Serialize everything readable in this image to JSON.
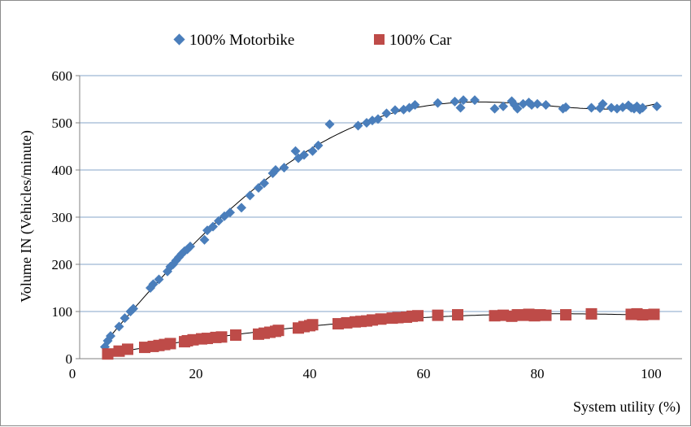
{
  "chart_data": {
    "type": "scatter",
    "title": "",
    "xlabel": "System utility (%)",
    "ylabel": "Volume IN (Vehicles/minute)",
    "xlim": [
      0,
      100
    ],
    "ylim": [
      0,
      600
    ],
    "x_ticks": [
      "0",
      "20",
      "40",
      "60",
      "80",
      "100"
    ],
    "y_ticks": [
      "0",
      "100",
      "200",
      "300",
      "400",
      "500",
      "600"
    ],
    "grid": "horizontal",
    "legend_position": "top",
    "series": [
      {
        "name": "100% Motorbike",
        "marker": "diamond",
        "color": "#4a7ebb",
        "trendline": "polynomial",
        "points": [
          [
            4,
            25
          ],
          [
            4.5,
            38
          ],
          [
            5,
            48
          ],
          [
            6.5,
            68
          ],
          [
            7.5,
            86
          ],
          [
            8.5,
            100
          ],
          [
            9,
            106
          ],
          [
            12,
            150
          ],
          [
            12.5,
            158
          ],
          [
            13.5,
            168
          ],
          [
            15,
            185
          ],
          [
            15.5,
            195
          ],
          [
            16,
            200
          ],
          [
            16.5,
            208
          ],
          [
            17,
            215
          ],
          [
            17.5,
            222
          ],
          [
            18,
            228
          ],
          [
            18.5,
            232
          ],
          [
            19,
            238
          ],
          [
            21.5,
            252
          ],
          [
            22,
            272
          ],
          [
            23,
            280
          ],
          [
            24,
            292
          ],
          [
            25,
            302
          ],
          [
            26,
            310
          ],
          [
            28,
            320
          ],
          [
            29.5,
            346
          ],
          [
            31,
            362
          ],
          [
            32,
            372
          ],
          [
            33.5,
            393
          ],
          [
            34,
            400
          ],
          [
            35.5,
            405
          ],
          [
            37.5,
            440
          ],
          [
            38,
            425
          ],
          [
            39,
            432
          ],
          [
            40.5,
            440
          ],
          [
            41.5,
            452
          ],
          [
            43.5,
            497
          ],
          [
            48.5,
            494
          ],
          [
            50,
            500
          ],
          [
            51,
            505
          ],
          [
            52,
            508
          ],
          [
            53.5,
            520
          ],
          [
            55,
            527
          ],
          [
            56.5,
            528
          ],
          [
            57.5,
            532
          ],
          [
            58.5,
            538
          ],
          [
            62.5,
            542
          ],
          [
            65.5,
            545
          ],
          [
            66.5,
            532
          ],
          [
            67,
            548
          ],
          [
            69,
            548
          ],
          [
            72.5,
            530
          ],
          [
            74,
            535
          ],
          [
            75.5,
            546
          ],
          [
            76,
            538
          ],
          [
            76.5,
            530
          ],
          [
            77.5,
            540
          ],
          [
            78.5,
            543
          ],
          [
            79,
            538
          ],
          [
            80,
            540
          ],
          [
            81.5,
            538
          ],
          [
            84.5,
            530
          ],
          [
            85,
            533
          ],
          [
            89.5,
            532
          ],
          [
            91,
            531
          ],
          [
            91.5,
            540
          ],
          [
            93,
            532
          ],
          [
            94,
            530
          ],
          [
            95,
            533
          ],
          [
            96,
            537
          ],
          [
            96.5,
            532
          ],
          [
            97,
            530
          ],
          [
            97.5,
            535
          ],
          [
            98,
            528
          ],
          [
            98.5,
            532
          ],
          [
            101,
            535
          ]
        ]
      },
      {
        "name": "100% Car",
        "marker": "square",
        "color": "#be4b48",
        "trendline": "polynomial",
        "points": [
          [
            4.5,
            10
          ],
          [
            6.5,
            16
          ],
          [
            8,
            20
          ],
          [
            11,
            24
          ],
          [
            12.5,
            26
          ],
          [
            13.5,
            28
          ],
          [
            14.5,
            30
          ],
          [
            15.5,
            32
          ],
          [
            18,
            36
          ],
          [
            18.5,
            38
          ],
          [
            19.5,
            40
          ],
          [
            21,
            42
          ],
          [
            22,
            43
          ],
          [
            23.5,
            45
          ],
          [
            24.5,
            46
          ],
          [
            27,
            50
          ],
          [
            31,
            52
          ],
          [
            32,
            54
          ],
          [
            33,
            56
          ],
          [
            34,
            58
          ],
          [
            34.5,
            60
          ],
          [
            38,
            65
          ],
          [
            39,
            68
          ],
          [
            40,
            70
          ],
          [
            40.5,
            72
          ],
          [
            45,
            74
          ],
          [
            46.5,
            76
          ],
          [
            48,
            78
          ],
          [
            49,
            79
          ],
          [
            50,
            80
          ],
          [
            51,
            82
          ],
          [
            52.5,
            84
          ],
          [
            54.5,
            86
          ],
          [
            55.5,
            87
          ],
          [
            57,
            88
          ],
          [
            58,
            90
          ],
          [
            59,
            91
          ],
          [
            62.5,
            92
          ],
          [
            66,
            93
          ],
          [
            72.5,
            91
          ],
          [
            74,
            92
          ],
          [
            75.5,
            90
          ],
          [
            76.5,
            93
          ],
          [
            77.5,
            92
          ],
          [
            78.5,
            94
          ],
          [
            79.5,
            91
          ],
          [
            80.5,
            93
          ],
          [
            81.5,
            92
          ],
          [
            85,
            93
          ],
          [
            89.5,
            95
          ],
          [
            96.5,
            94
          ],
          [
            97.5,
            95
          ],
          [
            98.5,
            93
          ],
          [
            100.5,
            94
          ]
        ]
      }
    ]
  }
}
